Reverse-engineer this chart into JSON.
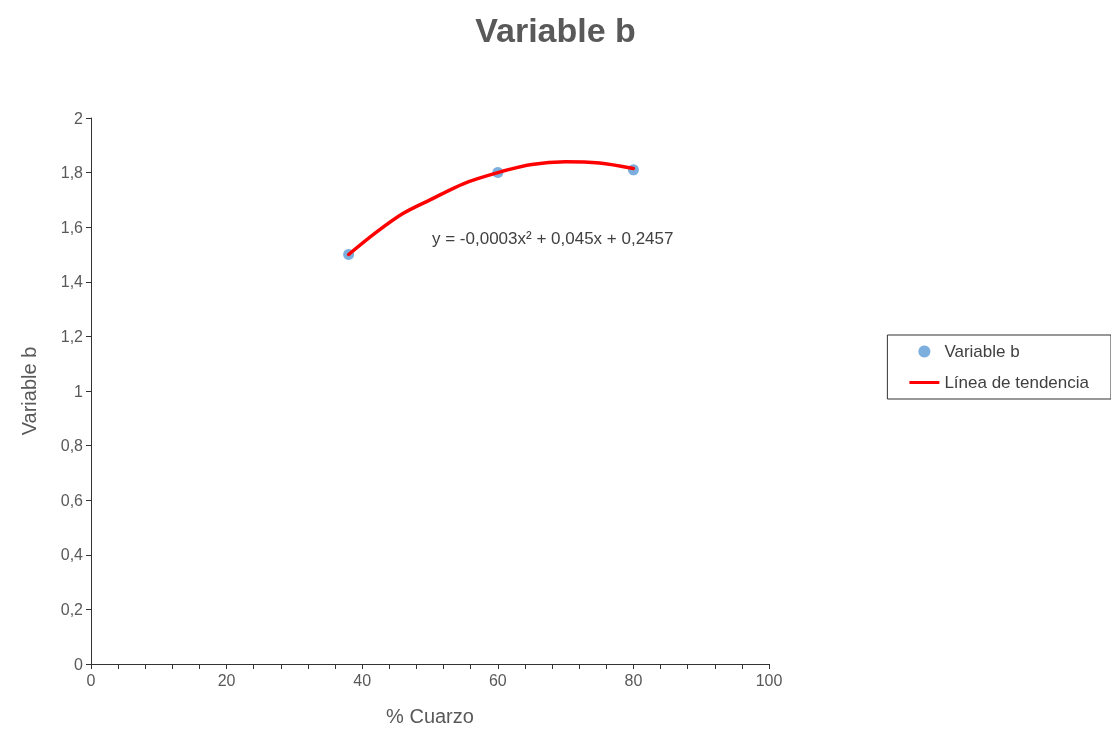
{
  "chart_data": {
    "type": "scatter",
    "title": "Variable b",
    "xlabel": "% Cuarzo",
    "ylabel": "Variable b",
    "series": [
      {
        "name": "Variable b",
        "color": "#5b9bd5",
        "marker": "circle",
        "x": [
          38,
          60,
          80
        ],
        "values": [
          1.5,
          1.8,
          1.81
        ]
      },
      {
        "name": "Línea de tendencia",
        "type": "line",
        "color": "#ff0000",
        "marker": "none",
        "line_style": "solid",
        "x": [
          38,
          42,
          46,
          50,
          55,
          60,
          65,
          70,
          75,
          80
        ],
        "values": [
          1.5,
          1.58,
          1.65,
          1.7,
          1.76,
          1.8,
          1.83,
          1.84,
          1.835,
          1.815
        ]
      }
    ],
    "annotations": [
      "y = -0,0003x² + 0,045x + 0,2457"
    ],
    "xlim": [
      0,
      100
    ],
    "xticks": [
      0,
      {
        "value": 4,
        "label": null
      },
      {
        "value": 8,
        "label": null
      },
      {
        "value": 12,
        "label": null
      },
      {
        "value": 16,
        "label": null
      },
      20,
      {
        "value": 24,
        "label": null
      },
      {
        "value": 28,
        "label": null
      },
      {
        "value": 32,
        "label": null
      },
      {
        "value": 36,
        "label": null
      },
      40,
      {
        "value": 44,
        "label": null
      },
      {
        "value": 48,
        "label": null
      },
      {
        "value": 52,
        "label": null
      },
      {
        "value": 56,
        "label": null
      },
      60,
      {
        "value": 64,
        "label": null
      },
      {
        "value": 68,
        "label": null
      },
      {
        "value": 72,
        "label": null
      },
      {
        "value": 76,
        "label": null
      },
      80,
      {
        "value": 84,
        "label": null
      },
      {
        "value": 88,
        "label": null
      },
      {
        "value": 92,
        "label": null
      },
      {
        "value": 96,
        "label": null
      },
      100
    ],
    "ylim": [
      0,
      2
    ],
    "yticks": [
      0,
      {
        "value": 0.2,
        "label": "0,2"
      },
      {
        "value": 0.4,
        "label": "0,4"
      },
      {
        "value": 0.6,
        "label": "0,6"
      },
      {
        "value": 0.8,
        "label": "0,8"
      },
      1,
      {
        "value": 1.2,
        "label": "1,2"
      },
      {
        "value": 1.4,
        "label": "1,4"
      },
      {
        "value": 1.6,
        "label": "1,6"
      },
      {
        "value": 1.8,
        "label": "1,8"
      },
      2
    ],
    "grid": false,
    "legend": "right"
  }
}
